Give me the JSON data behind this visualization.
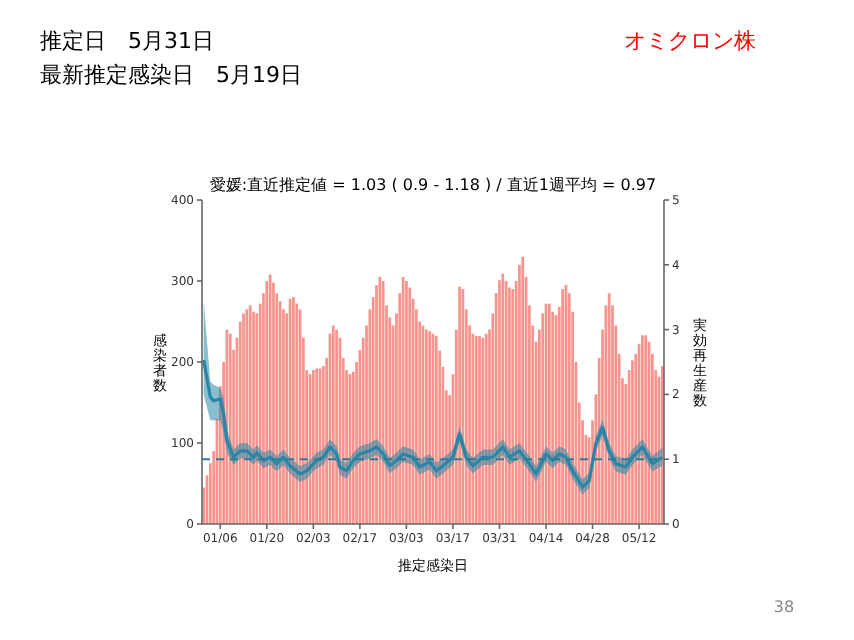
{
  "chart_data": {
    "type": "bar",
    "title": "愛媛:直近推定値 = 1.03 ( 0.9 - 1.18 ) / 直近1週平均 = 0.97",
    "xlabel": "推定感染日",
    "ylabel": "感染者数",
    "y2label": "実効再生産数",
    "annotations": [
      "推定日　5月31日",
      "最新推定感染日　5月19日",
      "オミクロン株",
      "38"
    ],
    "xlim": [
      "--01-01",
      "--05-20"
    ],
    "xticks": [
      {
        "value": "--01-06",
        "label": "01/06"
      },
      {
        "value": "--01-20",
        "label": "01/20"
      },
      {
        "value": "--02-03",
        "label": "02/03"
      },
      {
        "value": "--02-17",
        "label": "02/17"
      },
      {
        "value": "--03-03",
        "label": "03/03"
      },
      {
        "value": "--03-17",
        "label": "03/17"
      },
      {
        "value": "--03-31",
        "label": "03/31"
      },
      {
        "value": "--04-14",
        "label": "04/14"
      },
      {
        "value": "--04-28",
        "label": "04/28"
      },
      {
        "value": "--05-12",
        "label": "05/12"
      }
    ],
    "ylim": [
      0,
      400
    ],
    "yticks": [
      0,
      100,
      200,
      300,
      400
    ],
    "y2lim": [
      0,
      5
    ],
    "y2ticks": [
      0,
      1,
      2,
      3,
      4,
      5
    ],
    "grid": false,
    "ref_lines": [
      {
        "axis": "y2",
        "value": 1,
        "color": "#2e7d98",
        "line_style": "dashed"
      }
    ],
    "series": [
      {
        "color": "#f8948e",
        "x": [
          "--01-01",
          "--01-02",
          "--01-03",
          "--01-04",
          "--01-05",
          "--01-06",
          "--01-07",
          "--01-08",
          "--01-09",
          "--01-10",
          "--01-11",
          "--01-12",
          "--01-13",
          "--01-14",
          "--01-15",
          "--01-16",
          "--01-17",
          "--01-18",
          "--01-19",
          "--01-20",
          "--01-21",
          "--01-22",
          "--01-23",
          "--01-24",
          "--01-25",
          "--01-26",
          "--01-27",
          "--01-28",
          "--01-29",
          "--01-30",
          "--01-31",
          "--02-01",
          "--02-02",
          "--02-03",
          "--02-04",
          "--02-05",
          "--02-06",
          "--02-07",
          "--02-08",
          "--02-09",
          "--02-10",
          "--02-11",
          "--02-12",
          "--02-13",
          "--02-14",
          "--02-15",
          "--02-16",
          "--02-17",
          "--02-18",
          "--02-19",
          "--02-20",
          "--02-21",
          "--02-22",
          "--02-23",
          "--02-24",
          "--02-25",
          "--02-26",
          "--02-27",
          "--02-28",
          "--03-01",
          "--03-02",
          "--03-03",
          "--03-04",
          "--03-05",
          "--03-06",
          "--03-07",
          "--03-08",
          "--03-09",
          "--03-10",
          "--03-11",
          "--03-12",
          "--03-13",
          "--03-14",
          "--03-15",
          "--03-16",
          "--03-17",
          "--03-18",
          "--03-19",
          "--03-20",
          "--03-21",
          "--03-22",
          "--03-23",
          "--03-24",
          "--03-25",
          "--03-26",
          "--03-27",
          "--03-28",
          "--03-29",
          "--03-30",
          "--03-31",
          "--04-01",
          "--04-02",
          "--04-03",
          "--04-04",
          "--04-05",
          "--04-06",
          "--04-07",
          "--04-08",
          "--04-09",
          "--04-10",
          "--04-11",
          "--04-12",
          "--04-13",
          "--04-14",
          "--04-15",
          "--04-16",
          "--04-17",
          "--04-18",
          "--04-19",
          "--04-20",
          "--04-21",
          "--04-22",
          "--04-23",
          "--04-24",
          "--04-25",
          "--04-26",
          "--04-27",
          "--04-28",
          "--04-29",
          "--04-30",
          "--05-01",
          "--05-02",
          "--05-03",
          "--05-04",
          "--05-05",
          "--05-06",
          "--05-07",
          "--05-08",
          "--05-09",
          "--05-10",
          "--05-11",
          "--05-12",
          "--05-13",
          "--05-14",
          "--05-15",
          "--05-16",
          "--05-17",
          "--05-18",
          "--05-19"
        ],
        "values": [
          45,
          60,
          75,
          90,
          130,
          170,
          200,
          240,
          235,
          215,
          230,
          250,
          260,
          265,
          270,
          262,
          260,
          272,
          285,
          300,
          308,
          298,
          285,
          275,
          265,
          260,
          278,
          280,
          272,
          265,
          230,
          190,
          185,
          190,
          192,
          192,
          195,
          205,
          235,
          245,
          240,
          230,
          205,
          190,
          185,
          188,
          200,
          215,
          230,
          245,
          265,
          280,
          295,
          305,
          300,
          270,
          255,
          245,
          260,
          285,
          305,
          300,
          292,
          278,
          265,
          250,
          245,
          240,
          238,
          235,
          232,
          214,
          194,
          165,
          159,
          185,
          240,
          293,
          290,
          265,
          245,
          235,
          232,
          232,
          230,
          235,
          240,
          260,
          285,
          301,
          309,
          300,
          292,
          290,
          300,
          320,
          330,
          305,
          270,
          245,
          225,
          240,
          260,
          272,
          272,
          262,
          258,
          268,
          290,
          295,
          285,
          262,
          200,
          150,
          128,
          110,
          107,
          128,
          160,
          205,
          240,
          270,
          285,
          270,
          245,
          210,
          180,
          173,
          190,
          202,
          210,
          222,
          233,
          233,
          225,
          210,
          190,
          182,
          195
        ]
      },
      {
        "type": "line",
        "axis": "y2",
        "color": "#2a86a6",
        "x": [
          "--01-01",
          "--01-03",
          "--01-04",
          "--01-06",
          "--01-07",
          "--01-08",
          "--01-10",
          "--01-12",
          "--01-14",
          "--01-16",
          "--01-17",
          "--01-19",
          "--01-21",
          "--01-23",
          "--01-25",
          "--01-27",
          "--01-30",
          "--02-01",
          "--02-04",
          "--02-06",
          "--02-08",
          "--02-10",
          "--02-11",
          "--02-13",
          "--02-15",
          "--02-17",
          "--02-20",
          "--02-22",
          "--02-24",
          "--02-26",
          "--02-28",
          "--03-02",
          "--03-05",
          "--03-07",
          "--03-10",
          "--03-12",
          "--03-14",
          "--03-17",
          "--03-19",
          "--03-21",
          "--03-23",
          "--03-26",
          "--03-29",
          "--04-01",
          "--04-03",
          "--04-06",
          "--04-09",
          "--04-11",
          "--04-14",
          "--04-16",
          "--04-18",
          "--04-20",
          "--04-22",
          "--04-25",
          "--04-27",
          "--04-29",
          "--05-01",
          "--05-03",
          "--05-05",
          "--05-08",
          "--05-10",
          "--05-13",
          "--05-16",
          "--05-19"
        ],
        "values": [
          2.53,
          1.96,
          1.9,
          1.93,
          1.7,
          1.29,
          1.03,
          1.13,
          1.13,
          1.03,
          1.1,
          0.98,
          1.03,
          0.93,
          1.03,
          0.9,
          0.77,
          0.82,
          0.98,
          1.03,
          1.19,
          1.08,
          0.88,
          0.82,
          0.98,
          1.08,
          1.13,
          1.19,
          1.08,
          0.9,
          0.98,
          1.08,
          1.03,
          0.88,
          0.96,
          0.82,
          0.9,
          1.03,
          1.39,
          1.03,
          0.9,
          1.03,
          1.03,
          1.19,
          1.03,
          1.13,
          0.93,
          0.77,
          1.08,
          0.98,
          1.08,
          1.03,
          0.82,
          0.57,
          0.67,
          1.24,
          1.49,
          1.13,
          0.93,
          0.88,
          1.03,
          1.19,
          0.93,
          1.03
        ],
        "lower": [
          2.0,
          1.6,
          1.6,
          1.6,
          1.4,
          1.1,
          0.91,
          1.01,
          1.01,
          0.91,
          0.98,
          0.86,
          0.91,
          0.81,
          0.91,
          0.78,
          0.65,
          0.7,
          0.86,
          0.91,
          1.07,
          0.96,
          0.76,
          0.7,
          0.86,
          0.96,
          1.01,
          1.07,
          0.96,
          0.78,
          0.86,
          0.96,
          0.91,
          0.76,
          0.84,
          0.7,
          0.78,
          0.91,
          1.27,
          0.91,
          0.78,
          0.91,
          0.91,
          1.07,
          0.91,
          1.01,
          0.81,
          0.65,
          0.96,
          0.86,
          0.96,
          0.91,
          0.7,
          0.45,
          0.55,
          1.12,
          1.37,
          1.01,
          0.81,
          0.76,
          0.91,
          1.07,
          0.81,
          0.9
        ],
        "upper": [
          3.45,
          2.2,
          2.15,
          2.1,
          1.95,
          1.45,
          1.15,
          1.25,
          1.25,
          1.15,
          1.22,
          1.1,
          1.15,
          1.05,
          1.15,
          1.02,
          0.89,
          0.94,
          1.1,
          1.15,
          1.31,
          1.2,
          1.0,
          0.94,
          1.1,
          1.2,
          1.25,
          1.31,
          1.2,
          1.02,
          1.1,
          1.2,
          1.15,
          1.0,
          1.08,
          0.94,
          1.02,
          1.15,
          1.51,
          1.15,
          1.02,
          1.15,
          1.15,
          1.31,
          1.15,
          1.25,
          1.05,
          0.89,
          1.2,
          1.1,
          1.2,
          1.15,
          0.94,
          0.69,
          0.79,
          1.36,
          1.61,
          1.25,
          1.05,
          1.0,
          1.15,
          1.31,
          1.05,
          1.18
        ]
      }
    ]
  }
}
